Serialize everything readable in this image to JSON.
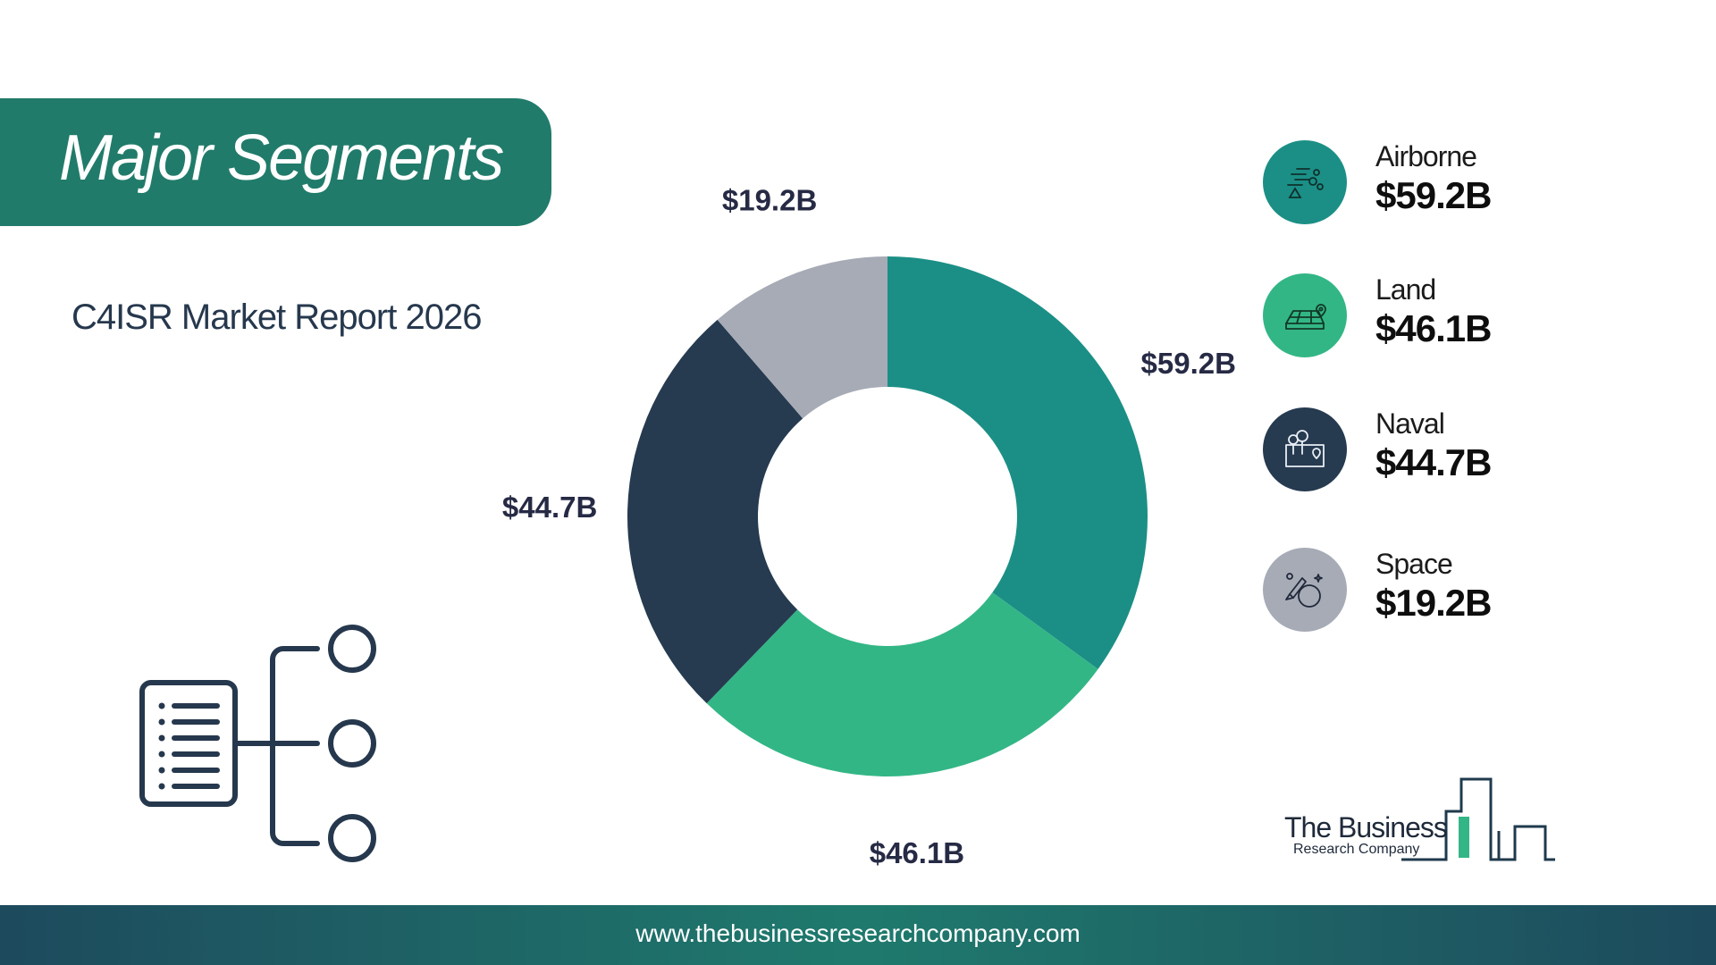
{
  "title": "Major Segments",
  "subtitle": "C4ISR Market Report 2026",
  "chart_data": {
    "type": "pie",
    "variant": "donut",
    "title": "",
    "categories": [
      "Airborne",
      "Land",
      "Naval",
      "Space"
    ],
    "values": [
      59.2,
      46.1,
      44.7,
      19.2
    ],
    "labels": [
      "$59.2B",
      "$46.1B",
      "$44.7B",
      "$19.2B"
    ],
    "colors": [
      "#1b8f86",
      "#33b686",
      "#263a50",
      "#a6abb6"
    ],
    "legend_placement": "right"
  },
  "legend": [
    {
      "name": "Airborne",
      "value": "$59.2B",
      "color": "#1b8f86",
      "icon": "airborne-icon"
    },
    {
      "name": "Land",
      "value": "$46.1B",
      "color": "#33b686",
      "icon": "land-icon"
    },
    {
      "name": "Naval",
      "value": "$44.7B",
      "color": "#263a50",
      "icon": "naval-icon"
    },
    {
      "name": "Space",
      "value": "$19.2B",
      "color": "#a6abb6",
      "icon": "space-icon"
    }
  ],
  "decor_icon": "segments-tree-icon",
  "logo": {
    "line1": "The Business",
    "line2": "Research Company"
  },
  "footer": {
    "url": "www.thebusinessresearchcompany.com"
  }
}
